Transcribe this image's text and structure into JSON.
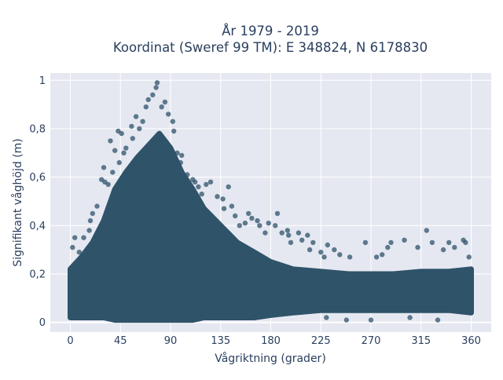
{
  "chart_data": {
    "type": "scatter",
    "title_line1": "År 1979 - 2019",
    "title_line2": "Koordinat (Sweref 99 TM): E 348824, N 6178830",
    "xlabel": "Vågriktning (grader)",
    "ylabel": "Signifikant våghöjd (m)",
    "xlim": [
      -18,
      378
    ],
    "ylim": [
      -0.04,
      1.03
    ],
    "xticks": [
      0,
      45,
      90,
      135,
      180,
      225,
      270,
      315,
      360
    ],
    "xtick_labels": [
      "0",
      "45",
      "90",
      "135",
      "180",
      "225",
      "270",
      "315",
      "360"
    ],
    "yticks": [
      0,
      0.2,
      0.4,
      0.6,
      0.8,
      1
    ],
    "ytick_labels": [
      "0",
      "0,2",
      "0,4",
      "0,6",
      "0,8",
      "1"
    ],
    "grid": true,
    "legend": "none",
    "point_color": "#2f5369",
    "band_profile": {
      "direction_deg": [
        0,
        10,
        20,
        30,
        40,
        50,
        60,
        70,
        80,
        90,
        100,
        110,
        120,
        135,
        150,
        165,
        180,
        200,
        225,
        250,
        270,
        290,
        315,
        340,
        360
      ],
      "lower_m": [
        0.02,
        0.02,
        0.02,
        0.02,
        0.01,
        0.01,
        0.01,
        0.01,
        0.01,
        0.01,
        0.01,
        0.01,
        0.02,
        0.02,
        0.02,
        0.02,
        0.03,
        0.04,
        0.05,
        0.05,
        0.05,
        0.05,
        0.05,
        0.05,
        0.04
      ],
      "upper_m": [
        0.22,
        0.27,
        0.33,
        0.42,
        0.55,
        0.62,
        0.68,
        0.73,
        0.78,
        0.72,
        0.62,
        0.55,
        0.47,
        0.4,
        0.33,
        0.29,
        0.25,
        0.22,
        0.21,
        0.2,
        0.2,
        0.2,
        0.21,
        0.21,
        0.22
      ]
    },
    "points": [
      {
        "x": 78,
        "y": 0.99
      },
      {
        "x": 77,
        "y": 0.97
      },
      {
        "x": 74,
        "y": 0.94
      },
      {
        "x": 70,
        "y": 0.92
      },
      {
        "x": 82,
        "y": 0.89
      },
      {
        "x": 68,
        "y": 0.89
      },
      {
        "x": 85,
        "y": 0.91
      },
      {
        "x": 59,
        "y": 0.85
      },
      {
        "x": 88,
        "y": 0.86
      },
      {
        "x": 65,
        "y": 0.83
      },
      {
        "x": 92,
        "y": 0.83
      },
      {
        "x": 93,
        "y": 0.79
      },
      {
        "x": 55,
        "y": 0.81
      },
      {
        "x": 43,
        "y": 0.79
      },
      {
        "x": 46,
        "y": 0.78
      },
      {
        "x": 36,
        "y": 0.75
      },
      {
        "x": 50,
        "y": 0.72
      },
      {
        "x": 40,
        "y": 0.71
      },
      {
        "x": 30,
        "y": 0.64
      },
      {
        "x": 28,
        "y": 0.59
      },
      {
        "x": 31,
        "y": 0.58
      },
      {
        "x": 100,
        "y": 0.69
      },
      {
        "x": 105,
        "y": 0.61
      },
      {
        "x": 110,
        "y": 0.59
      },
      {
        "x": 115,
        "y": 0.56
      },
      {
        "x": 122,
        "y": 0.57
      },
      {
        "x": 126,
        "y": 0.58
      },
      {
        "x": 142,
        "y": 0.56
      },
      {
        "x": 132,
        "y": 0.52
      },
      {
        "x": 137,
        "y": 0.51
      },
      {
        "x": 145,
        "y": 0.48
      },
      {
        "x": 148,
        "y": 0.44
      },
      {
        "x": 160,
        "y": 0.45
      },
      {
        "x": 163,
        "y": 0.43
      },
      {
        "x": 157,
        "y": 0.41
      },
      {
        "x": 168,
        "y": 0.42
      },
      {
        "x": 170,
        "y": 0.4
      },
      {
        "x": 178,
        "y": 0.41
      },
      {
        "x": 186,
        "y": 0.45
      },
      {
        "x": 184,
        "y": 0.4
      },
      {
        "x": 190,
        "y": 0.37
      },
      {
        "x": 195,
        "y": 0.38
      },
      {
        "x": 196,
        "y": 0.36
      },
      {
        "x": 205,
        "y": 0.37
      },
      {
        "x": 208,
        "y": 0.34
      },
      {
        "x": 213,
        "y": 0.36
      },
      {
        "x": 218,
        "y": 0.33
      },
      {
        "x": 225,
        "y": 0.29
      },
      {
        "x": 231,
        "y": 0.32
      },
      {
        "x": 237,
        "y": 0.3
      },
      {
        "x": 242,
        "y": 0.28
      },
      {
        "x": 251,
        "y": 0.27
      },
      {
        "x": 265,
        "y": 0.33
      },
      {
        "x": 280,
        "y": 0.28
      },
      {
        "x": 285,
        "y": 0.31
      },
      {
        "x": 288,
        "y": 0.33
      },
      {
        "x": 300,
        "y": 0.34
      },
      {
        "x": 312,
        "y": 0.31
      },
      {
        "x": 320,
        "y": 0.38
      },
      {
        "x": 325,
        "y": 0.33
      },
      {
        "x": 335,
        "y": 0.3
      },
      {
        "x": 340,
        "y": 0.33
      },
      {
        "x": 345,
        "y": 0.31
      },
      {
        "x": 353,
        "y": 0.34
      },
      {
        "x": 355,
        "y": 0.33
      },
      {
        "x": 358,
        "y": 0.27
      },
      {
        "x": 2,
        "y": 0.31
      },
      {
        "x": 4,
        "y": 0.35
      },
      {
        "x": 12,
        "y": 0.35
      },
      {
        "x": 17,
        "y": 0.38
      },
      {
        "x": 18,
        "y": 0.42
      },
      {
        "x": 24,
        "y": 0.48
      },
      {
        "x": 20,
        "y": 0.45
      },
      {
        "x": 8,
        "y": 0.29
      },
      {
        "x": 230,
        "y": 0.02
      },
      {
        "x": 248,
        "y": 0.01
      },
      {
        "x": 270,
        "y": 0.01
      },
      {
        "x": 305,
        "y": 0.02
      },
      {
        "x": 330,
        "y": 0.01
      },
      {
        "x": 275,
        "y": 0.27
      },
      {
        "x": 228,
        "y": 0.27
      },
      {
        "x": 215,
        "y": 0.3
      },
      {
        "x": 198,
        "y": 0.33
      },
      {
        "x": 175,
        "y": 0.37
      },
      {
        "x": 152,
        "y": 0.4
      },
      {
        "x": 138,
        "y": 0.47
      },
      {
        "x": 118,
        "y": 0.53
      },
      {
        "x": 112,
        "y": 0.58
      },
      {
        "x": 96,
        "y": 0.7
      },
      {
        "x": 99,
        "y": 0.66
      },
      {
        "x": 62,
        "y": 0.8
      },
      {
        "x": 56,
        "y": 0.76
      },
      {
        "x": 48,
        "y": 0.7
      },
      {
        "x": 44,
        "y": 0.66
      },
      {
        "x": 38,
        "y": 0.62
      },
      {
        "x": 34,
        "y": 0.57
      }
    ]
  }
}
